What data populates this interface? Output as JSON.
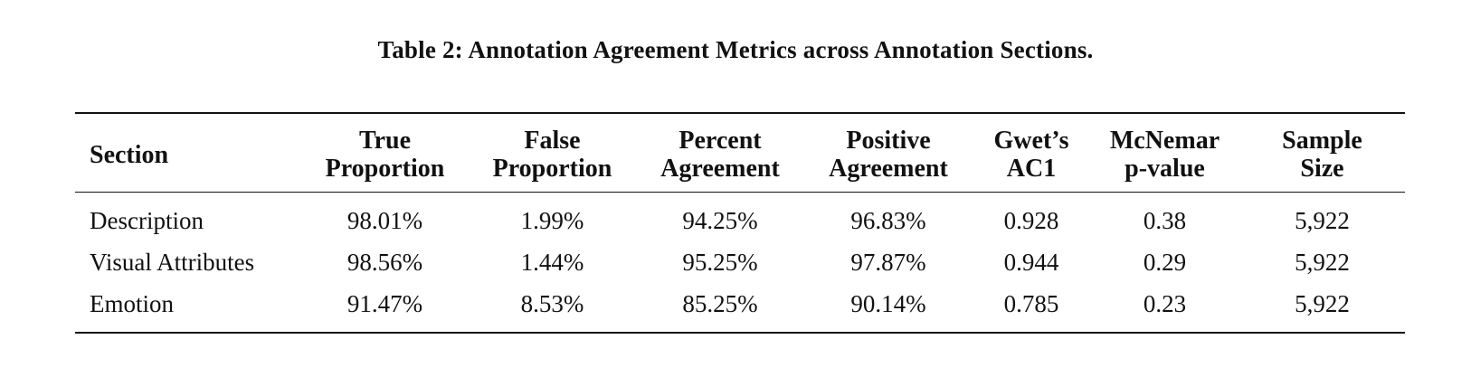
{
  "caption": "Table 2: Annotation Agreement Metrics across Annotation Sections.",
  "table": {
    "headers": [
      {
        "lines": [
          "Section"
        ]
      },
      {
        "lines": [
          "True",
          "Proportion"
        ]
      },
      {
        "lines": [
          "False",
          "Proportion"
        ]
      },
      {
        "lines": [
          "Percent",
          "Agreement"
        ]
      },
      {
        "lines": [
          "Positive",
          "Agreement"
        ]
      },
      {
        "lines": [
          "Gwet’s",
          "AC1"
        ]
      },
      {
        "lines": [
          "McNemar",
          "p-value"
        ]
      },
      {
        "lines": [
          "Sample",
          "Size"
        ]
      }
    ],
    "rows": [
      [
        "Description",
        "98.01%",
        "1.99%",
        "94.25%",
        "96.83%",
        "0.928",
        "0.38",
        "5,922"
      ],
      [
        "Visual Attributes",
        "98.56%",
        "1.44%",
        "95.25%",
        "97.87%",
        "0.944",
        "0.29",
        "5,922"
      ],
      [
        "Emotion",
        "91.47%",
        "8.53%",
        "85.25%",
        "90.14%",
        "0.785",
        "0.23",
        "5,922"
      ]
    ]
  }
}
